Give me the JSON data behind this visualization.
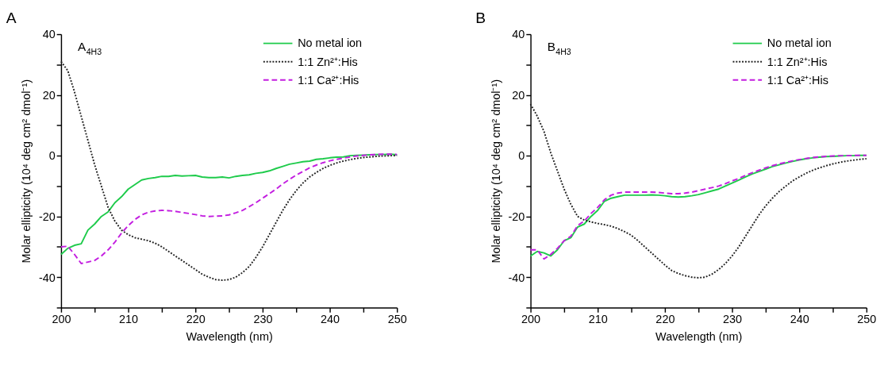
{
  "chart_data": [
    {
      "type": "line",
      "title": "A",
      "xlabel": "Wavelength (nm)",
      "ylabel": "Molar ellipticity (10⁴ deg cm² dmol⁻¹)",
      "annotations": [
        "A$_{4H3}$"
      ],
      "x": [
        200,
        201,
        202,
        203,
        204,
        205,
        206,
        207,
        208,
        209,
        210,
        211,
        212,
        213,
        214,
        215,
        216,
        217,
        218,
        219,
        220,
        221,
        222,
        223,
        224,
        225,
        226,
        227,
        228,
        229,
        230,
        231,
        232,
        233,
        234,
        235,
        236,
        237,
        238,
        239,
        240,
        241,
        242,
        243,
        244,
        245,
        246,
        247,
        248,
        249,
        250
      ],
      "xlim": [
        200,
        250
      ],
      "xticks": [
        200,
        {
          "value": 205,
          "label": null
        },
        210,
        {
          "value": 215,
          "label": null
        },
        220,
        {
          "value": 225,
          "label": null
        },
        230,
        {
          "value": 235,
          "label": null
        },
        240,
        {
          "value": 245,
          "label": null
        },
        250
      ],
      "ylim": [
        -50,
        40
      ],
      "yticks": [
        {
          "value": -50,
          "label": null
        },
        -40,
        {
          "value": -30,
          "label": null
        },
        -20,
        {
          "value": -10,
          "label": null
        },
        0,
        {
          "value": 10,
          "label": null
        },
        20,
        {
          "value": 30,
          "label": null
        },
        40
      ],
      "grid": false,
      "legend": "top right",
      "series": [
        {
          "name": "No metal ion",
          "color": "#1ecb4b",
          "line_style": "solid",
          "values": [
            -32.5,
            -30.5,
            -29.5,
            -29,
            -24.5,
            -22.5,
            -20,
            -18.5,
            -15.5,
            -13.5,
            -11,
            -9.5,
            -8,
            -7.5,
            -7.2,
            -6.8,
            -6.8,
            -6.5,
            -6.7,
            -6.6,
            -6.5,
            -7,
            -7.2,
            -7.2,
            -7,
            -7.3,
            -6.8,
            -6.5,
            -6.3,
            -5.8,
            -5.5,
            -5,
            -4.2,
            -3.5,
            -2.8,
            -2.4,
            -2,
            -1.8,
            -1.2,
            -1,
            -0.7,
            -0.5,
            -0.4,
            0,
            0.1,
            0.2,
            0.3,
            0.4,
            0.4,
            0.5,
            0.3
          ]
        },
        {
          "name": "1:1 Zn²⁺:His",
          "color": "#222222",
          "line_style": "dotted",
          "values": [
            31,
            28,
            21,
            13,
            5,
            -3,
            -10,
            -17,
            -21.5,
            -24.5,
            -26,
            -27,
            -27.5,
            -28,
            -28.8,
            -30,
            -31.5,
            -33,
            -34.5,
            -36,
            -37.5,
            -39,
            -40,
            -40.8,
            -41,
            -40.8,
            -40,
            -38.5,
            -36.5,
            -33.5,
            -30,
            -26,
            -22,
            -18,
            -14.5,
            -11.5,
            -9,
            -7,
            -5.5,
            -4.2,
            -3.2,
            -2.4,
            -1.8,
            -1.3,
            -0.9,
            -0.6,
            -0.4,
            -0.2,
            -0.1,
            0,
            0
          ]
        },
        {
          "name": "1:1 Ca²⁺:His",
          "color": "#c31ee0",
          "line_style": "dashed",
          "values": [
            -30,
            -29.8,
            -32.5,
            -35.5,
            -35,
            -34.5,
            -33,
            -31,
            -28.5,
            -25.5,
            -23,
            -21,
            -19.5,
            -18.6,
            -18.2,
            -18,
            -18.1,
            -18.3,
            -18.7,
            -19,
            -19.4,
            -19.8,
            -20,
            -19.9,
            -19.8,
            -19.5,
            -18.8,
            -18,
            -16.8,
            -15.5,
            -14,
            -12.5,
            -11,
            -9.3,
            -7.8,
            -6.4,
            -5.2,
            -4,
            -3.1,
            -2.3,
            -1.7,
            -1.2,
            -0.8,
            -0.4,
            -0.1,
            0.1,
            0.3,
            0.4,
            0.5,
            0.5,
            0.4
          ]
        }
      ]
    },
    {
      "type": "line",
      "title": "B",
      "xlabel": "Wavelength (nm)",
      "ylabel": "Molar ellipticity (10⁴ deg cm² dmol⁻¹)",
      "annotations": [
        "B$_{4H3}$"
      ],
      "x": [
        200,
        201,
        202,
        203,
        204,
        205,
        206,
        207,
        208,
        209,
        210,
        211,
        212,
        213,
        214,
        215,
        216,
        217,
        218,
        219,
        220,
        221,
        222,
        223,
        224,
        225,
        226,
        227,
        228,
        229,
        230,
        231,
        232,
        233,
        234,
        235,
        236,
        237,
        238,
        239,
        240,
        241,
        242,
        243,
        244,
        245,
        246,
        247,
        248,
        249,
        250
      ],
      "xlim": [
        200,
        250
      ],
      "xticks": [
        200,
        {
          "value": 205,
          "label": null
        },
        210,
        {
          "value": 215,
          "label": null
        },
        220,
        {
          "value": 225,
          "label": null
        },
        230,
        {
          "value": 235,
          "label": null
        },
        240,
        {
          "value": 245,
          "label": null
        },
        250
      ],
      "ylim": [
        -50,
        40
      ],
      "yticks": [
        {
          "value": -50,
          "label": null
        },
        -40,
        {
          "value": -30,
          "label": null
        },
        -20,
        {
          "value": -10,
          "label": null
        },
        0,
        {
          "value": 10,
          "label": null
        },
        20,
        {
          "value": 30,
          "label": null
        },
        40
      ],
      "grid": false,
      "legend": "top right",
      "series": [
        {
          "name": "No metal ion",
          "color": "#1ecb4b",
          "line_style": "solid",
          "values": [
            -33,
            -31.5,
            -32,
            -33,
            -31,
            -28,
            -27,
            -23.5,
            -22.5,
            -20,
            -18,
            -15,
            -14,
            -13.5,
            -13,
            -13,
            -13,
            -13,
            -12.9,
            -13,
            -13.2,
            -13.5,
            -13.6,
            -13.5,
            -13.2,
            -12.8,
            -12.2,
            -11.6,
            -11,
            -10,
            -9,
            -8,
            -7,
            -6,
            -5.2,
            -4.4,
            -3.6,
            -3,
            -2.4,
            -1.9,
            -1.4,
            -1,
            -0.7,
            -0.5,
            -0.3,
            -0.2,
            -0.1,
            0,
            0,
            0.1,
            0.1
          ]
        },
        {
          "name": "1:1 Zn²⁺:His",
          "color": "#222222",
          "line_style": "dotted",
          "values": [
            17,
            13,
            8,
            1,
            -5,
            -11,
            -16,
            -20,
            -21.2,
            -21.8,
            -22.3,
            -22.7,
            -23.2,
            -24,
            -25,
            -26.2,
            -28,
            -30,
            -32,
            -34,
            -36,
            -37.8,
            -38.8,
            -39.5,
            -40,
            -40.2,
            -40,
            -39,
            -37.5,
            -35.5,
            -33,
            -30,
            -26.5,
            -23,
            -19.5,
            -16.5,
            -14,
            -11.8,
            -10,
            -8.3,
            -7,
            -5.8,
            -4.8,
            -4,
            -3.3,
            -2.7,
            -2.2,
            -1.8,
            -1.5,
            -1.2,
            -1
          ]
        },
        {
          "name": "1:1 Ca²⁺:His",
          "color": "#c31ee0",
          "line_style": "dashed",
          "values": [
            -31,
            -31,
            -34,
            -32.5,
            -30.5,
            -28,
            -26.5,
            -23,
            -21.5,
            -19,
            -17,
            -14.5,
            -13,
            -12.3,
            -12,
            -12,
            -12,
            -12,
            -12,
            -12.1,
            -12.3,
            -12.5,
            -12.5,
            -12.3,
            -12,
            -11.5,
            -11,
            -10.5,
            -10,
            -9.2,
            -8.3,
            -7.5,
            -6.5,
            -5.6,
            -4.8,
            -4,
            -3.3,
            -2.7,
            -2.2,
            -1.7,
            -1.3,
            -0.9,
            -0.6,
            -0.4,
            -0.2,
            -0.1,
            0,
            0,
            0.1,
            0.1,
            0.1
          ]
        }
      ]
    }
  ]
}
